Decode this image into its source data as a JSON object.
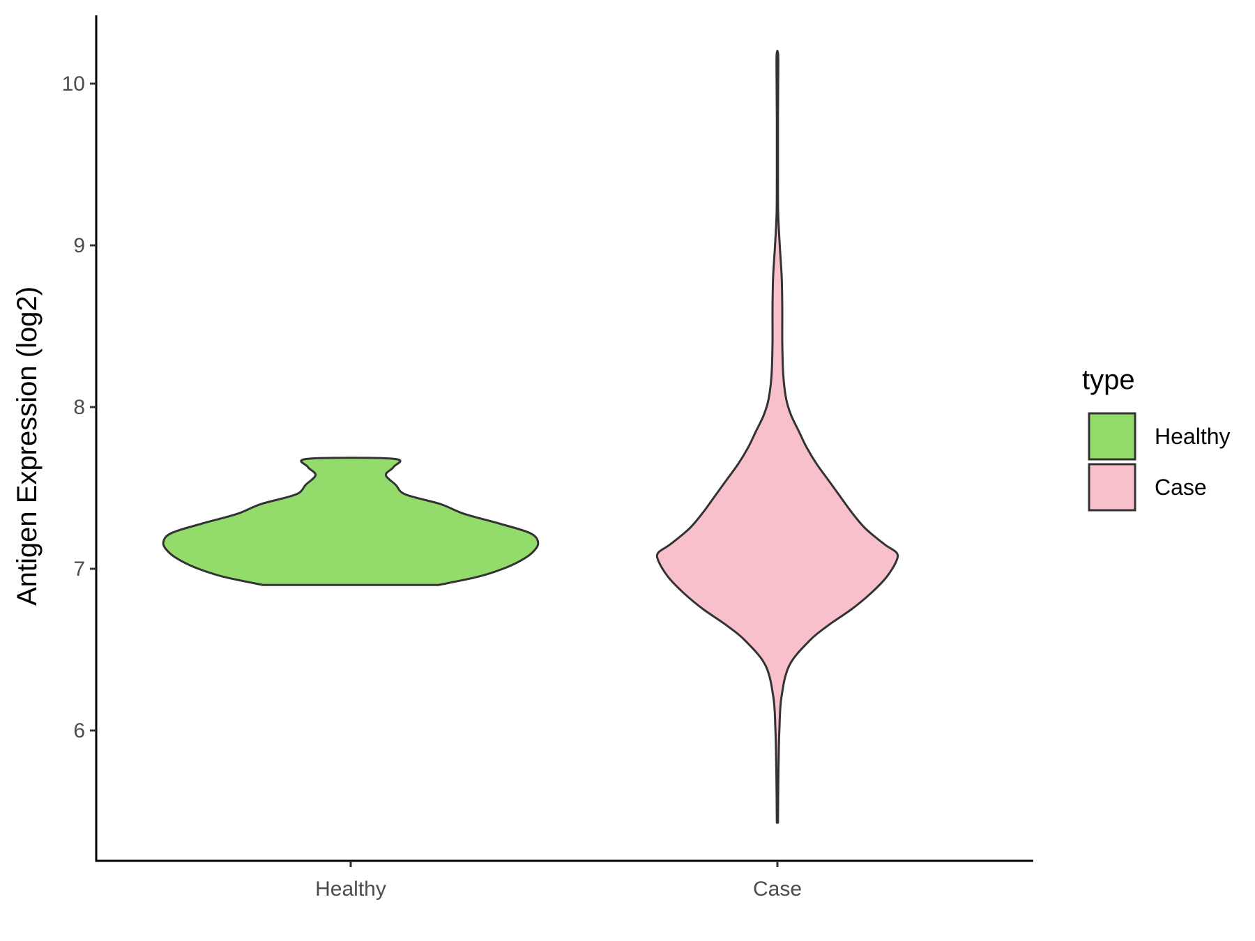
{
  "chart_data": {
    "type": "violin",
    "categories": [
      "Healthy",
      "Case"
    ],
    "xlabel": "",
    "ylabel": "Antigen Expression (log2)",
    "ylim": [
      5.2,
      10.4
    ],
    "yticks": [
      6,
      7,
      8,
      9,
      10
    ],
    "grid": false,
    "legend": {
      "title": "type",
      "placement": "right",
      "entries": [
        {
          "label": "Healthy",
          "color": "#93dc6b"
        },
        {
          "label": "Case",
          "color": "#f8c0cb"
        }
      ]
    },
    "series": [
      {
        "category": "Healthy",
        "color": "#93dc6b",
        "min": 6.9,
        "max": 7.68,
        "density": [
          [
            6.9,
            0.45
          ],
          [
            6.95,
            0.65
          ],
          [
            7.0,
            0.78
          ],
          [
            7.05,
            0.87
          ],
          [
            7.1,
            0.93
          ],
          [
            7.16,
            0.96
          ],
          [
            7.22,
            0.92
          ],
          [
            7.28,
            0.76
          ],
          [
            7.34,
            0.58
          ],
          [
            7.4,
            0.46
          ],
          [
            7.46,
            0.28
          ],
          [
            7.52,
            0.23
          ],
          [
            7.58,
            0.18
          ],
          [
            7.63,
            0.22
          ],
          [
            7.68,
            0.22
          ]
        ]
      },
      {
        "category": "Case",
        "color": "#f8c0cb",
        "min": 5.43,
        "max": 10.18,
        "density": [
          [
            5.43,
            0.003
          ],
          [
            5.6,
            0.004
          ],
          [
            5.8,
            0.006
          ],
          [
            6.0,
            0.01
          ],
          [
            6.2,
            0.02
          ],
          [
            6.4,
            0.06
          ],
          [
            6.55,
            0.16
          ],
          [
            6.65,
            0.26
          ],
          [
            6.75,
            0.38
          ],
          [
            6.85,
            0.48
          ],
          [
            6.95,
            0.56
          ],
          [
            7.05,
            0.61
          ],
          [
            7.1,
            0.61
          ],
          [
            7.15,
            0.55
          ],
          [
            7.25,
            0.45
          ],
          [
            7.35,
            0.38
          ],
          [
            7.45,
            0.32
          ],
          [
            7.55,
            0.26
          ],
          [
            7.65,
            0.2
          ],
          [
            7.75,
            0.15
          ],
          [
            7.85,
            0.11
          ],
          [
            7.95,
            0.07
          ],
          [
            8.05,
            0.045
          ],
          [
            8.2,
            0.03
          ],
          [
            8.4,
            0.025
          ],
          [
            8.6,
            0.025
          ],
          [
            8.8,
            0.022
          ],
          [
            9.0,
            0.012
          ],
          [
            9.2,
            0.004
          ],
          [
            9.4,
            0.003
          ],
          [
            9.6,
            0.003
          ],
          [
            9.8,
            0.003
          ],
          [
            10.0,
            0.004
          ],
          [
            10.18,
            0.004
          ]
        ]
      }
    ]
  }
}
